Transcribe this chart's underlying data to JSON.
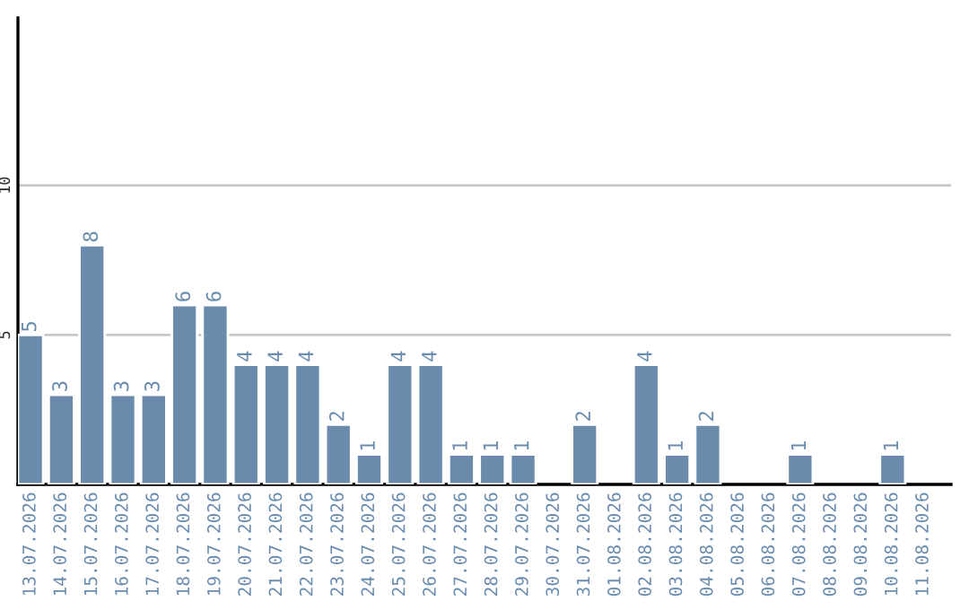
{
  "chart_data": {
    "type": "bar",
    "categories": [
      "13.07.2026",
      "14.07.2026",
      "15.07.2026",
      "16.07.2026",
      "17.07.2026",
      "18.07.2026",
      "19.07.2026",
      "20.07.2026",
      "21.07.2026",
      "22.07.2026",
      "23.07.2026",
      "24.07.2026",
      "25.07.2026",
      "26.07.2026",
      "27.07.2026",
      "28.07.2026",
      "29.07.2026",
      "30.07.2026",
      "31.07.2026",
      "01.08.2026",
      "02.08.2026",
      "03.08.2026",
      "04.08.2026",
      "05.08.2026",
      "06.08.2026",
      "07.08.2026",
      "08.08.2026",
      "09.08.2026",
      "10.08.2026",
      "11.08.2026"
    ],
    "values": [
      5,
      3,
      8,
      3,
      3,
      6,
      6,
      4,
      4,
      4,
      2,
      1,
      4,
      4,
      1,
      1,
      1,
      null,
      2,
      null,
      4,
      1,
      2,
      null,
      null,
      1,
      null,
      null,
      1,
      null
    ],
    "color": "#6a8bab",
    "ylim": [
      0,
      15.6
    ],
    "yticks": [
      5,
      10
    ],
    "grid": "y",
    "data_labels": true
  }
}
